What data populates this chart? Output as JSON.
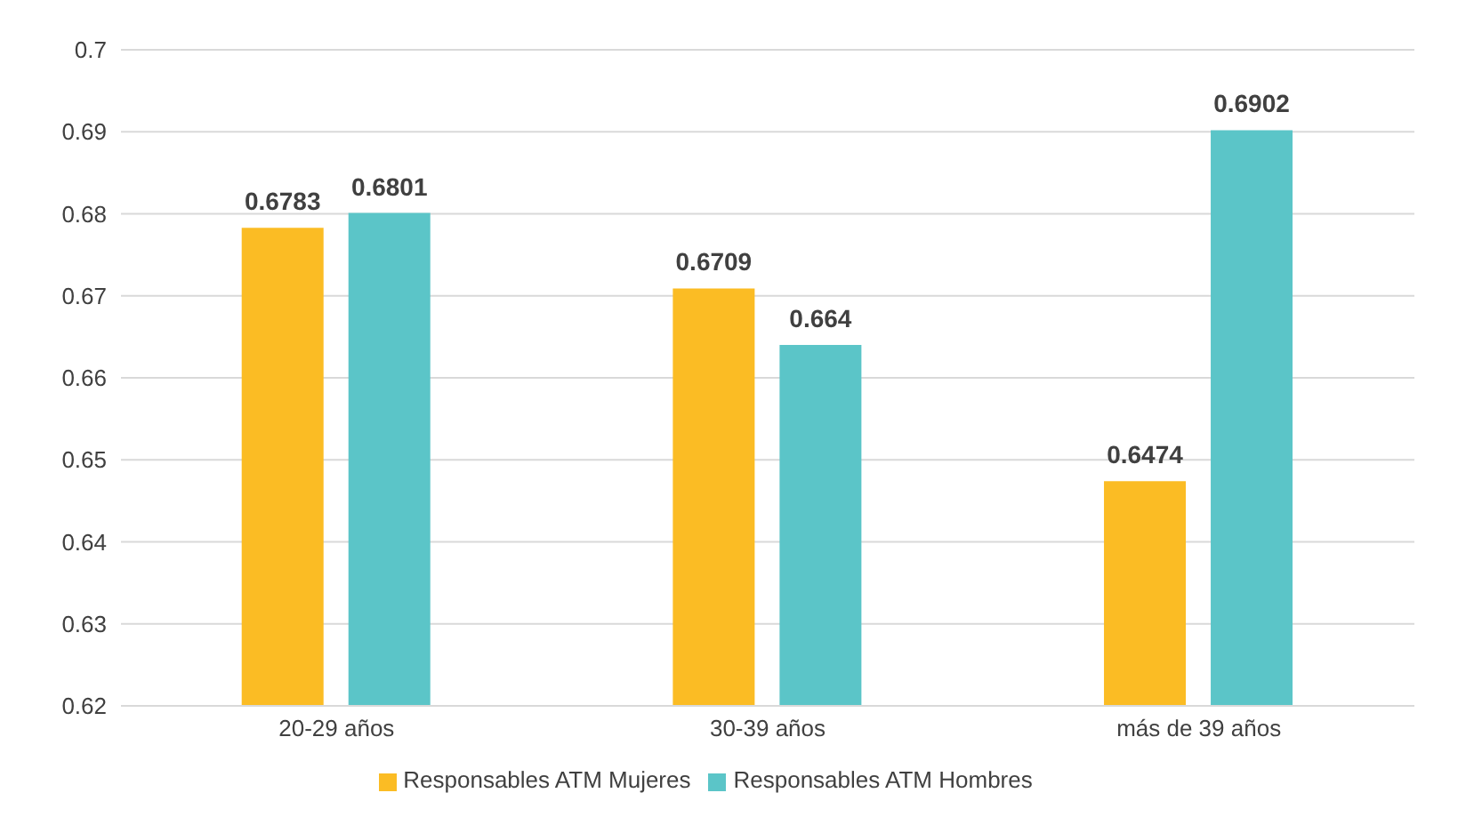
{
  "chart_data": {
    "type": "bar",
    "categories": [
      "20-29 años",
      "30-39 años",
      "más de 39 años"
    ],
    "series": [
      {
        "name": "Responsables ATM Mujeres",
        "color": "#fbbc24",
        "values": [
          0.6783,
          0.6709,
          0.6474
        ]
      },
      {
        "name": "Responsables ATM Hombres",
        "color": "#5bc5c8",
        "values": [
          0.6801,
          0.664,
          0.6902
        ]
      }
    ],
    "ylim": [
      0.62,
      0.7
    ],
    "yticks": [
      0.62,
      0.63,
      0.64,
      0.65,
      0.66,
      0.67,
      0.68,
      0.69,
      0.7
    ],
    "grid": "y",
    "legend": "bottom",
    "data_labels": true
  }
}
